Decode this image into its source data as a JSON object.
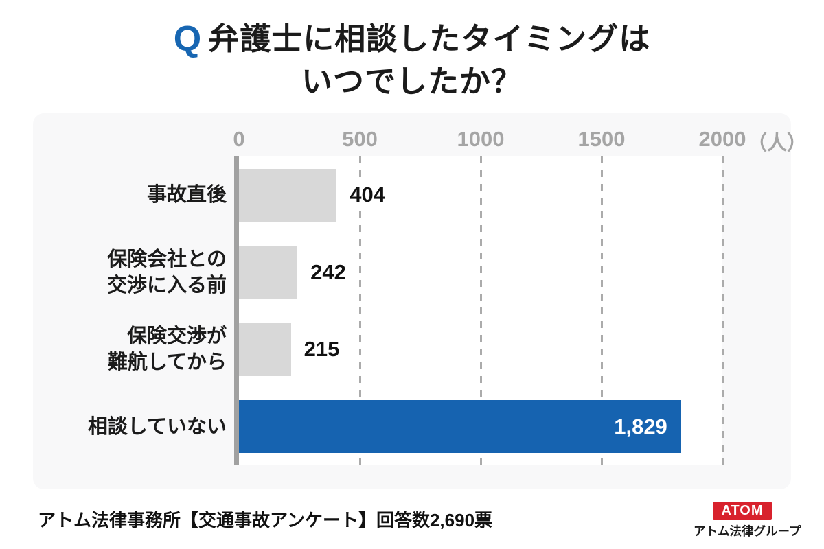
{
  "title": {
    "q_mark": "Q",
    "line1": "弁護士に相談したタイミングは",
    "line2": "いつでしたか？"
  },
  "chart_data": {
    "type": "bar",
    "orientation": "horizontal",
    "title": "弁護士に相談したタイミングはいつでしたか？",
    "categories": [
      "事故直後",
      "保険会社との\n交渉に入る前",
      "保険交渉が\n難航してから",
      "相談していない"
    ],
    "values": [
      404,
      242,
      215,
      1829
    ],
    "value_labels": [
      "404",
      "242",
      "215",
      "1,829"
    ],
    "xlim": [
      0,
      2000
    ],
    "x_ticks": [
      0,
      500,
      1000,
      1500,
      2000
    ],
    "x_tick_labels": [
      "0",
      "500",
      "1000",
      "1500",
      "2000"
    ],
    "unit_label": "（人）",
    "grid": "dashed-vertical",
    "legend": "none",
    "highlight_index": 3,
    "bar_color": "#d8d8d8",
    "highlight_color": "#1663b0"
  },
  "footer": {
    "source": "アトム法律事務所【交通事故アンケート】回答数2,690票"
  },
  "logo": {
    "brand": "ATOM",
    "subtitle": "アトム法律グループ",
    "box_color": "#d8222d"
  },
  "colors": {
    "page_bg": "#ffffff",
    "panel_bg": "#f8f8f9",
    "plot_bg": "#ffffff",
    "axis_line": "#a1a1a1",
    "gridline": "#ababab",
    "tick_text": "#a5a5a5",
    "text": "#1b1b1b",
    "q_blue": "#1766b2"
  }
}
